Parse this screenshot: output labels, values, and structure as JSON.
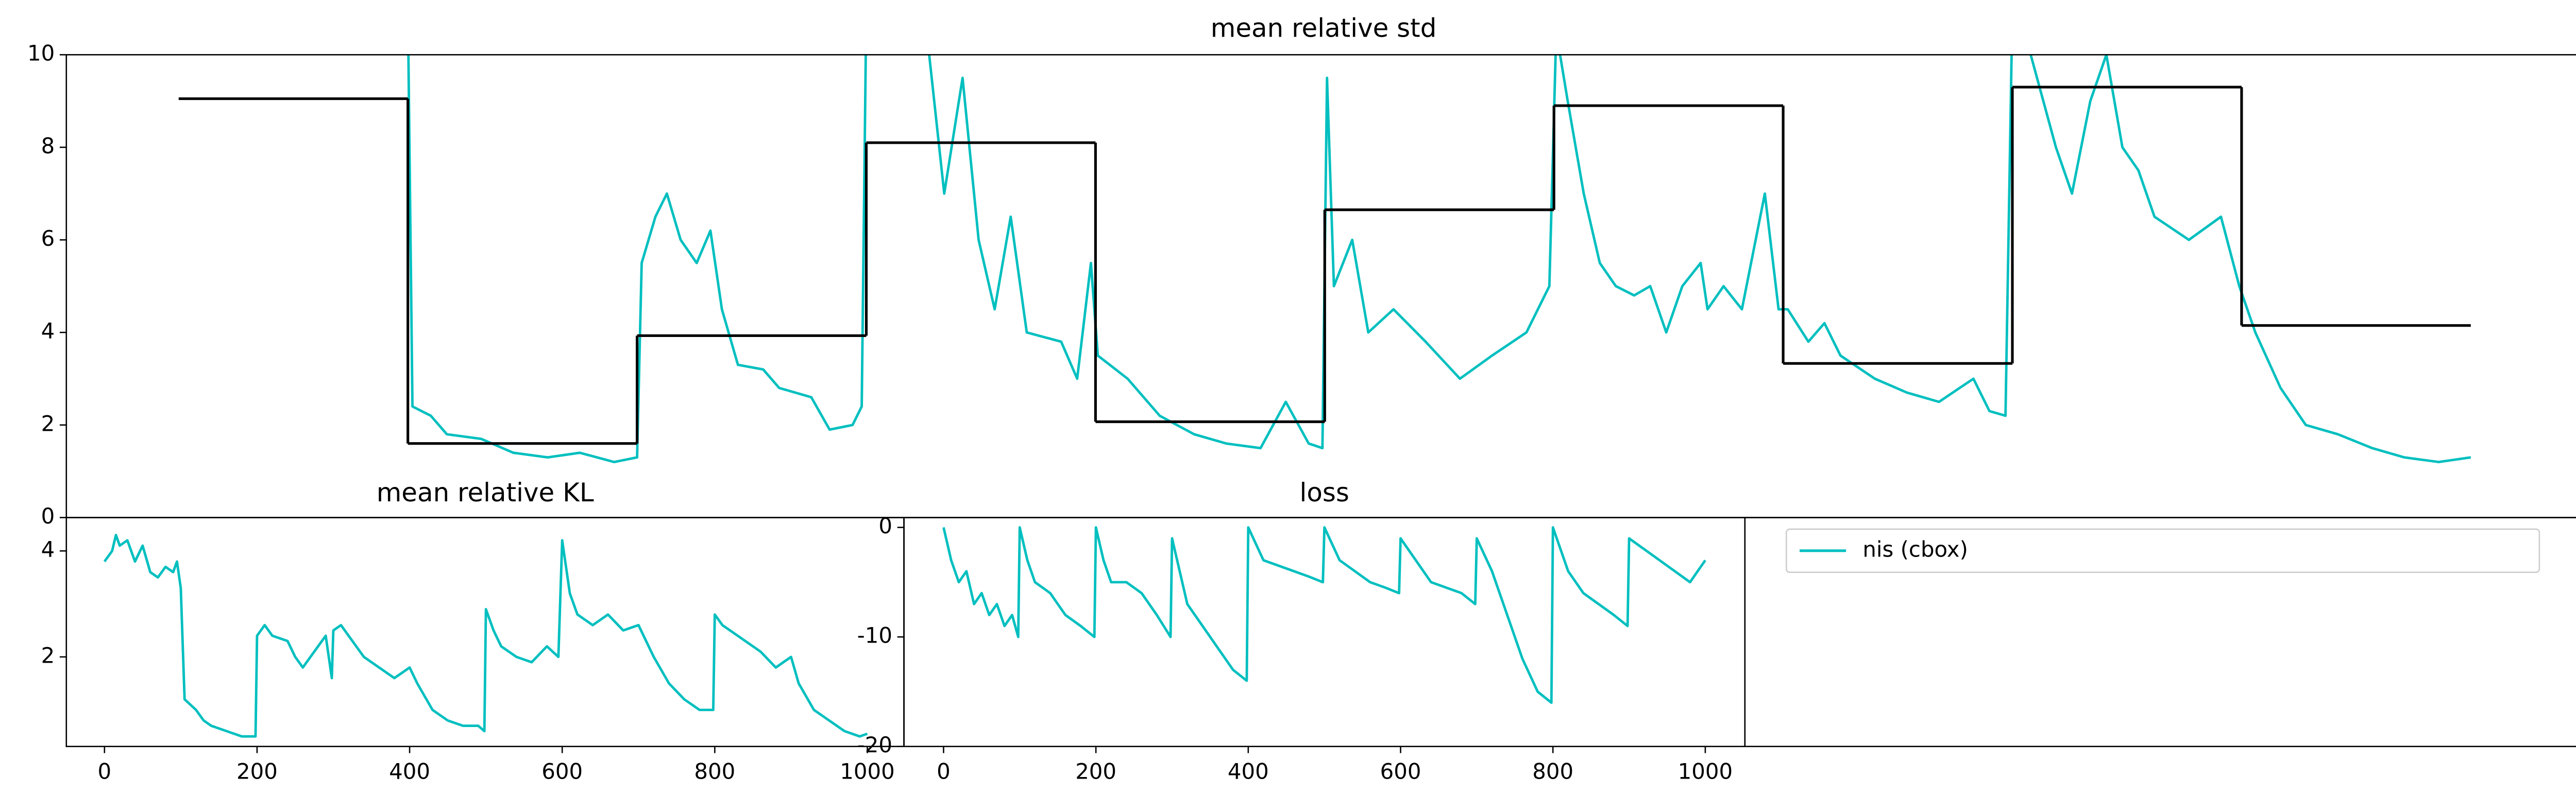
{
  "chart_data": [
    {
      "type": "line",
      "title": "mean relative std",
      "xlim": [
        -49,
        1048
      ],
      "ylim": [
        0,
        10
      ],
      "yticks": [
        0,
        2,
        4,
        6,
        8,
        10
      ],
      "series": [
        {
          "color": "#00bfbf",
          "x": [
            100,
            102,
            110,
            117,
            132,
            146,
            161,
            175,
            190,
            200,
            202,
            208,
            213,
            219,
            226,
            232,
            237,
            244,
            255,
            262,
            276,
            284,
            294,
            298,
            300,
            305,
            327,
            334,
            342,
            349,
            356,
            363,
            370,
            385,
            392,
            398,
            401,
            414,
            428,
            443,
            457,
            472,
            483,
            493,
            499,
            501,
            504,
            512,
            519,
            530,
            544,
            559,
            573,
            588,
            598,
            601,
            606,
            613,
            620,
            627,
            635,
            642,
            649,
            656,
            664,
            667,
            674,
            682,
            692,
            698,
            702,
            711,
            718,
            725,
            740,
            754,
            768,
            783,
            790,
            797,
            800,
            808,
            819,
            826,
            834,
            841,
            848,
            855,
            862,
            877,
            891,
            899,
            906,
            917,
            928,
            942,
            957,
            971,
            986,
            1000
          ],
          "values": [
            11,
            2.4,
            2.2,
            1.8,
            1.7,
            1.4,
            1.3,
            1.4,
            1.2,
            1.3,
            5.5,
            6.5,
            7,
            6,
            5.5,
            6.2,
            4.5,
            3.3,
            3.2,
            2.8,
            2.6,
            1.9,
            2,
            2.4,
            11,
            11,
            10.2,
            7,
            9.5,
            6,
            4.5,
            6.5,
            4,
            3.8,
            3,
            5.5,
            3.5,
            3,
            2.2,
            1.8,
            1.6,
            1.5,
            2.5,
            1.6,
            1.5,
            9.5,
            5,
            6,
            4,
            4.5,
            3.8,
            3,
            3.5,
            4,
            5,
            10.5,
            9,
            7,
            5.5,
            5,
            4.8,
            5,
            4,
            5,
            5.5,
            4.5,
            5,
            4.5,
            7,
            4.5,
            4.5,
            3.8,
            4.2,
            3.5,
            3,
            2.7,
            2.5,
            3,
            2.3,
            2.2,
            11,
            10,
            8,
            7,
            9,
            10,
            8,
            7.5,
            6.5,
            6,
            6.5,
            5,
            4,
            2.8,
            2,
            1.8,
            1.5,
            1.3,
            1.2,
            1.3
          ]
        },
        {
          "color": "#000000",
          "bins": [
            0,
            100,
            200,
            300,
            400,
            500,
            600,
            700,
            800,
            900,
            1000
          ],
          "values": [
            9.05,
            1.6,
            3.93,
            8.1,
            2.07,
            6.65,
            8.9,
            3.33,
            9.3,
            4.15
          ]
        }
      ]
    },
    {
      "type": "line",
      "title": "mean relative KL",
      "xlim": [
        -50,
        1048
      ],
      "ylim": [
        0.31,
        4.63
      ],
      "xticks": [
        0,
        200,
        400,
        600,
        800,
        1000
      ],
      "yticks": [
        2,
        4
      ],
      "series": [
        {
          "color": "#00bfbf",
          "x": [
            0,
            10,
            15,
            20,
            30,
            40,
            50,
            60,
            70,
            80,
            90,
            95,
            100,
            105,
            120,
            130,
            140,
            160,
            180,
            198,
            200,
            210,
            220,
            240,
            250,
            260,
            280,
            290,
            298,
            300,
            310,
            320,
            340,
            360,
            380,
            400,
            410,
            430,
            450,
            470,
            490,
            498,
            500,
            510,
            520,
            540,
            560,
            580,
            595,
            600,
            610,
            620,
            640,
            660,
            680,
            700,
            720,
            740,
            760,
            780,
            798,
            800,
            810,
            820,
            840,
            860,
            880,
            900,
            910,
            930,
            950,
            970,
            990,
            1000
          ],
          "values": [
            3.8,
            4.0,
            4.3,
            4.1,
            4.2,
            3.8,
            4.1,
            3.6,
            3.5,
            3.7,
            3.6,
            3.8,
            3.3,
            1.2,
            1.0,
            0.8,
            0.7,
            0.6,
            0.5,
            0.5,
            2.4,
            2.6,
            2.4,
            2.3,
            2.0,
            1.8,
            2.2,
            2.4,
            1.6,
            2.5,
            2.6,
            2.4,
            2.0,
            1.8,
            1.6,
            1.8,
            1.5,
            1.0,
            0.8,
            0.7,
            0.7,
            0.6,
            2.9,
            2.5,
            2.2,
            2.0,
            1.9,
            2.2,
            2.0,
            4.2,
            3.2,
            2.8,
            2.6,
            2.8,
            2.5,
            2.6,
            2.0,
            1.5,
            1.2,
            1.0,
            1.0,
            2.8,
            2.6,
            2.5,
            2.3,
            2.1,
            1.8,
            2.0,
            1.5,
            1.0,
            0.8,
            0.6,
            0.5,
            0.55
          ]
        }
      ]
    },
    {
      "type": "line",
      "title": "loss",
      "xlim": [
        -52,
        1052
      ],
      "ylim": [
        -20,
        0.9
      ],
      "xticks": [
        0,
        200,
        400,
        600,
        800,
        1000
      ],
      "yticks": [
        -20,
        -10,
        0
      ],
      "legend": "separate panel",
      "series": [
        {
          "name": "nis (cbox)",
          "color": "#00bfbf",
          "x": [
            0,
            10,
            20,
            30,
            40,
            50,
            60,
            70,
            80,
            90,
            98,
            100,
            110,
            120,
            140,
            160,
            180,
            198,
            200,
            210,
            220,
            240,
            260,
            280,
            298,
            300,
            310,
            320,
            340,
            360,
            380,
            398,
            400,
            420,
            440,
            460,
            480,
            498,
            500,
            520,
            540,
            560,
            580,
            598,
            600,
            620,
            640,
            660,
            680,
            698,
            700,
            720,
            740,
            760,
            780,
            798,
            800,
            820,
            840,
            860,
            880,
            898,
            900,
            920,
            940,
            960,
            980,
            1000
          ],
          "values": [
            0,
            -3,
            -5,
            -4,
            -7,
            -6,
            -8,
            -7,
            -9,
            -8,
            -10,
            0,
            -3,
            -5,
            -6,
            -8,
            -9,
            -10,
            0,
            -3,
            -5,
            -5,
            -6,
            -8,
            -10,
            -1,
            -4,
            -7,
            -9,
            -11,
            -13,
            -14,
            0,
            -3,
            -3.5,
            -4,
            -4.5,
            -5,
            0,
            -3,
            -4,
            -5,
            -5.5,
            -6,
            -1,
            -3,
            -5,
            -5.5,
            -6,
            -7,
            -1,
            -4,
            -8,
            -12,
            -15,
            -16,
            0,
            -4,
            -6,
            -7,
            -8,
            -9,
            -1,
            -2,
            -3,
            -4,
            -5,
            -3
          ]
        }
      ]
    }
  ]
}
